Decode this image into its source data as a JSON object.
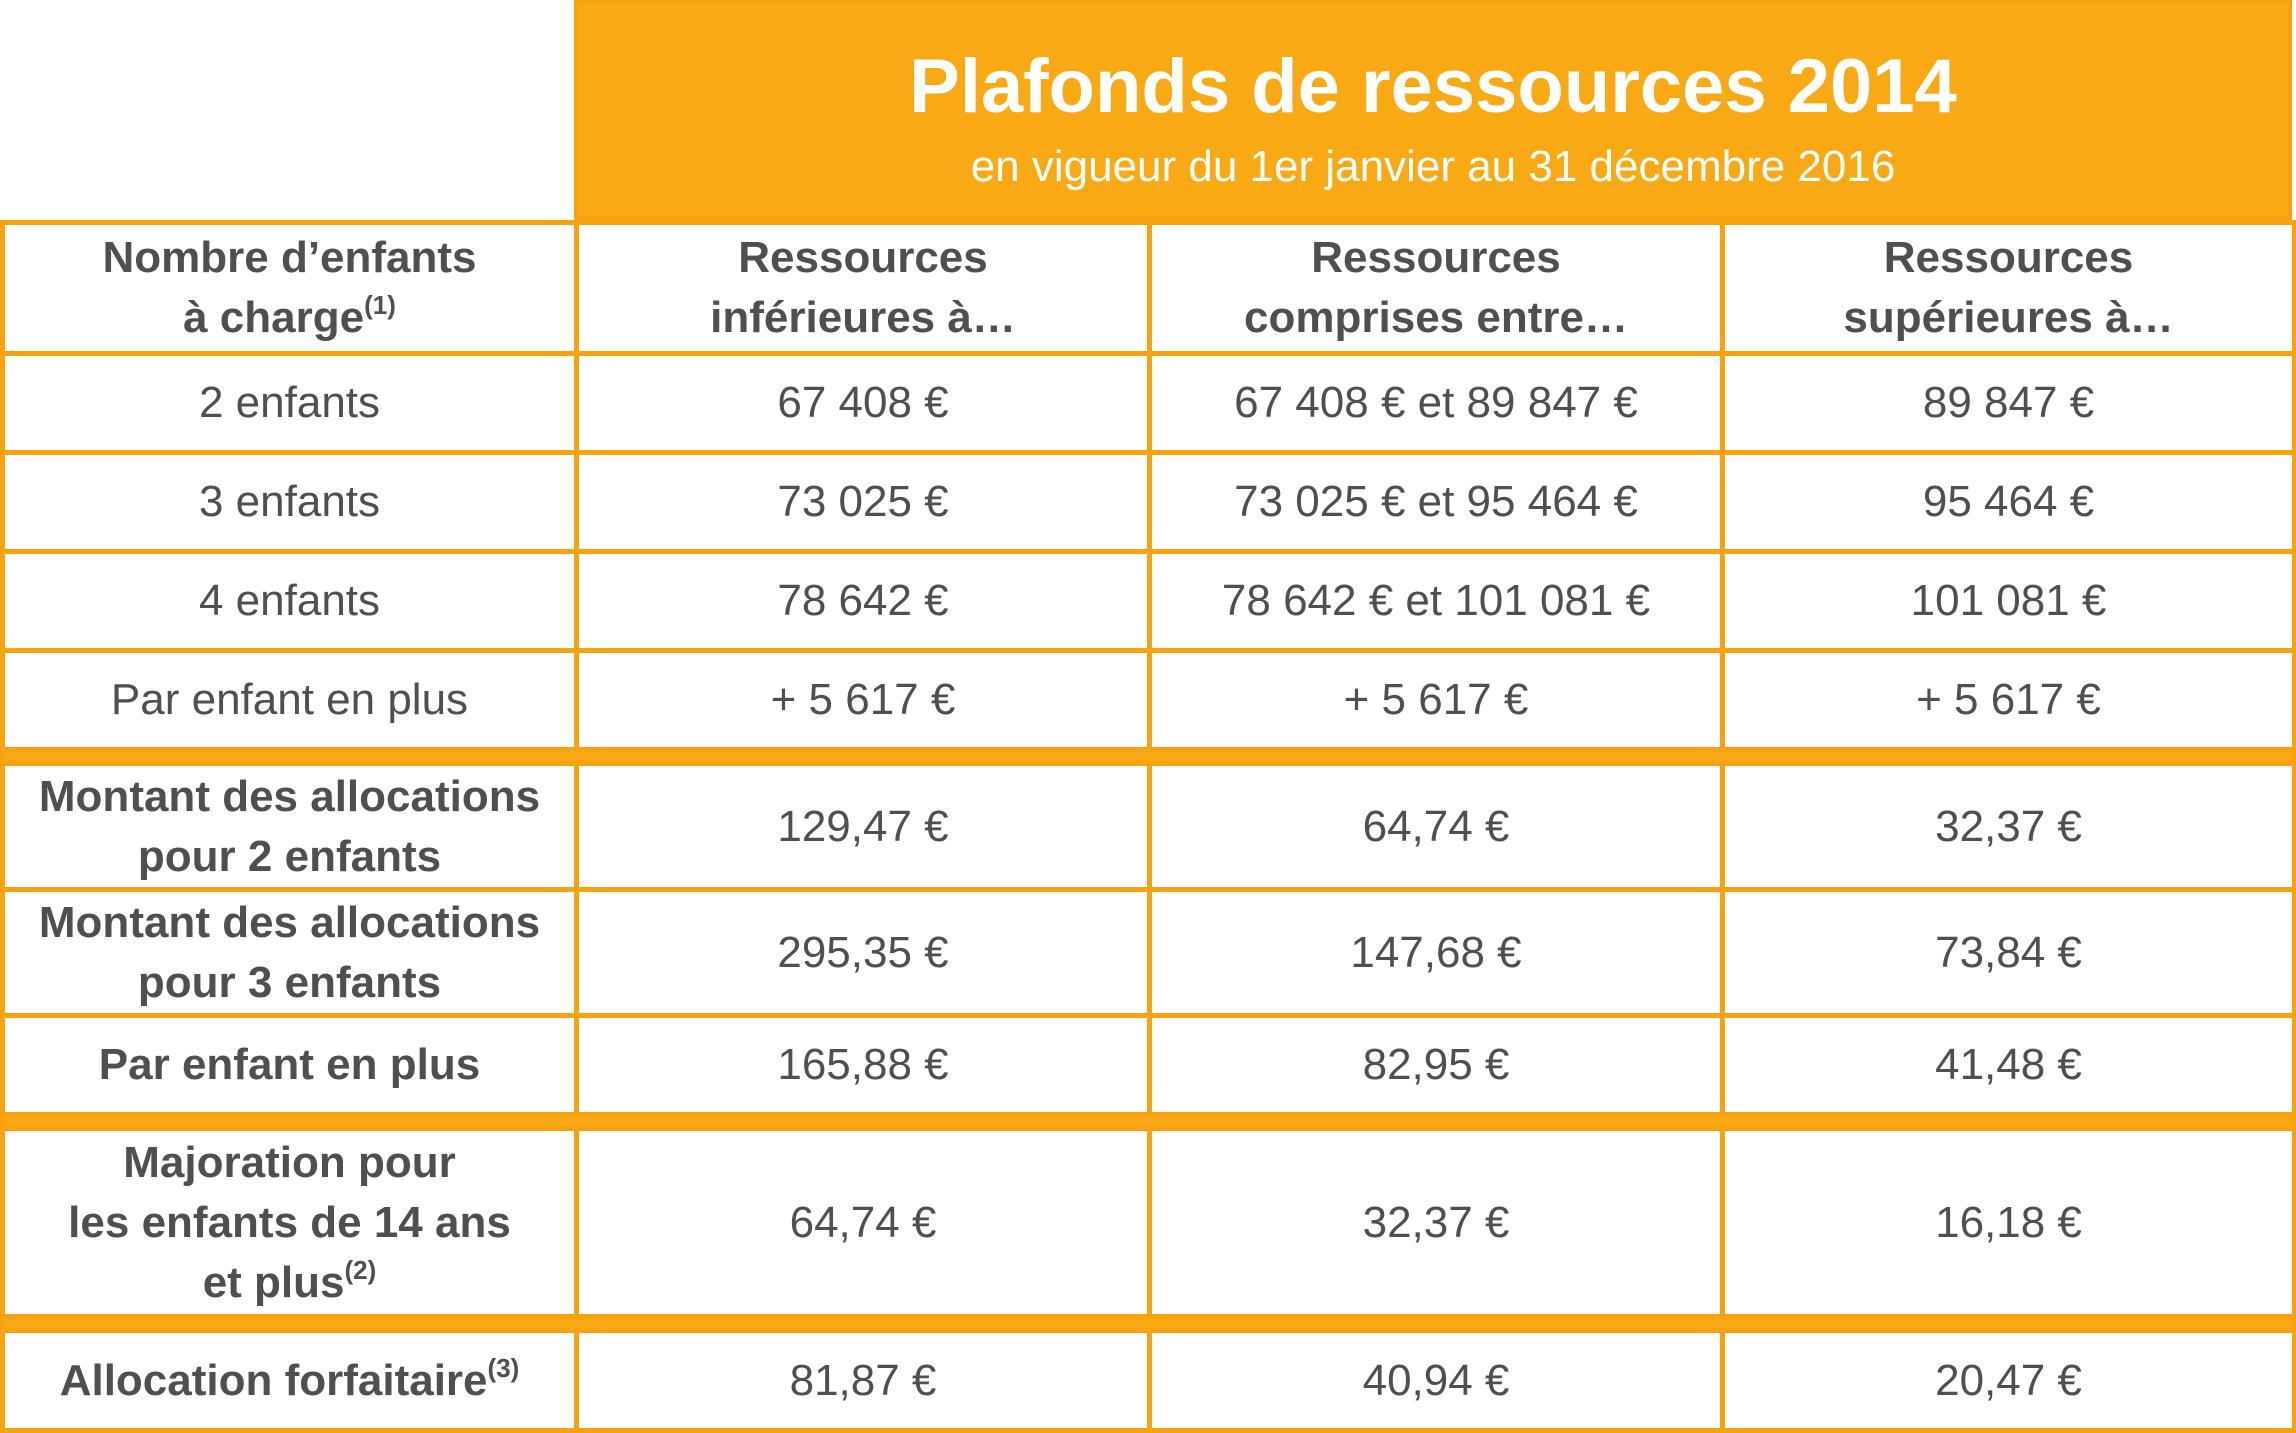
{
  "header": {
    "title": "Plafonds de ressources 2014",
    "subtitle": "en vigueur du 1er janvier au 31 décembre 2016"
  },
  "columns": {
    "col0_line1": "Nombre d’enfants",
    "col0_line2": "à charge",
    "col0_sup": "(1)",
    "col1_line1": "Ressources",
    "col1_line2": "inférieures à…",
    "col2_line1": "Ressources",
    "col2_line2": "comprises entre…",
    "col3_line1": "Ressources",
    "col3_line2": "supérieures à…"
  },
  "resources": [
    {
      "label": "2 enfants",
      "low": "67 408 €",
      "mid": "67 408 € et 89 847 €",
      "high": "89 847 €"
    },
    {
      "label": "3 enfants",
      "low": "73 025 €",
      "mid": "73 025 € et 95 464 €",
      "high": "95 464 €"
    },
    {
      "label": "4 enfants",
      "low": "78 642 €",
      "mid": "78 642 € et 101 081 €",
      "high": "101 081 €"
    },
    {
      "label": "Par enfant en plus",
      "low": "+ 5 617 €",
      "mid": "+ 5 617 €",
      "high": "+ 5 617 €"
    }
  ],
  "allocations": [
    {
      "label_line1": "Montant des allocations",
      "label_line2": "pour 2 enfants",
      "low": "129,47 €",
      "mid": "64,74 €",
      "high": "32,37 €"
    },
    {
      "label_line1": "Montant des allocations",
      "label_line2": "pour 3 enfants",
      "low": "295,35 €",
      "mid": "147,68 €",
      "high": "73,84 €"
    },
    {
      "label_line1": "Par enfant en plus",
      "low": "165,88 €",
      "mid": "82,95 €",
      "high": "41,48 €"
    }
  ],
  "majoration": {
    "label_line1": "Majoration pour",
    "label_line2": "les enfants de 14 ans",
    "label_line3": "et plus",
    "label_sup": "(2)",
    "low": "64,74 €",
    "mid": "32,37 €",
    "high": "16,18 €"
  },
  "forfaitaire": {
    "label": "Allocation forfaitaire",
    "label_sup": "(3)",
    "low": "81,87 €",
    "mid": "40,94 €",
    "high": "20,47 €"
  },
  "colors": {
    "accent": "#f9a913",
    "border": "#f7a20e",
    "text": "#4f4f4f",
    "header_text": "#ffffff"
  }
}
